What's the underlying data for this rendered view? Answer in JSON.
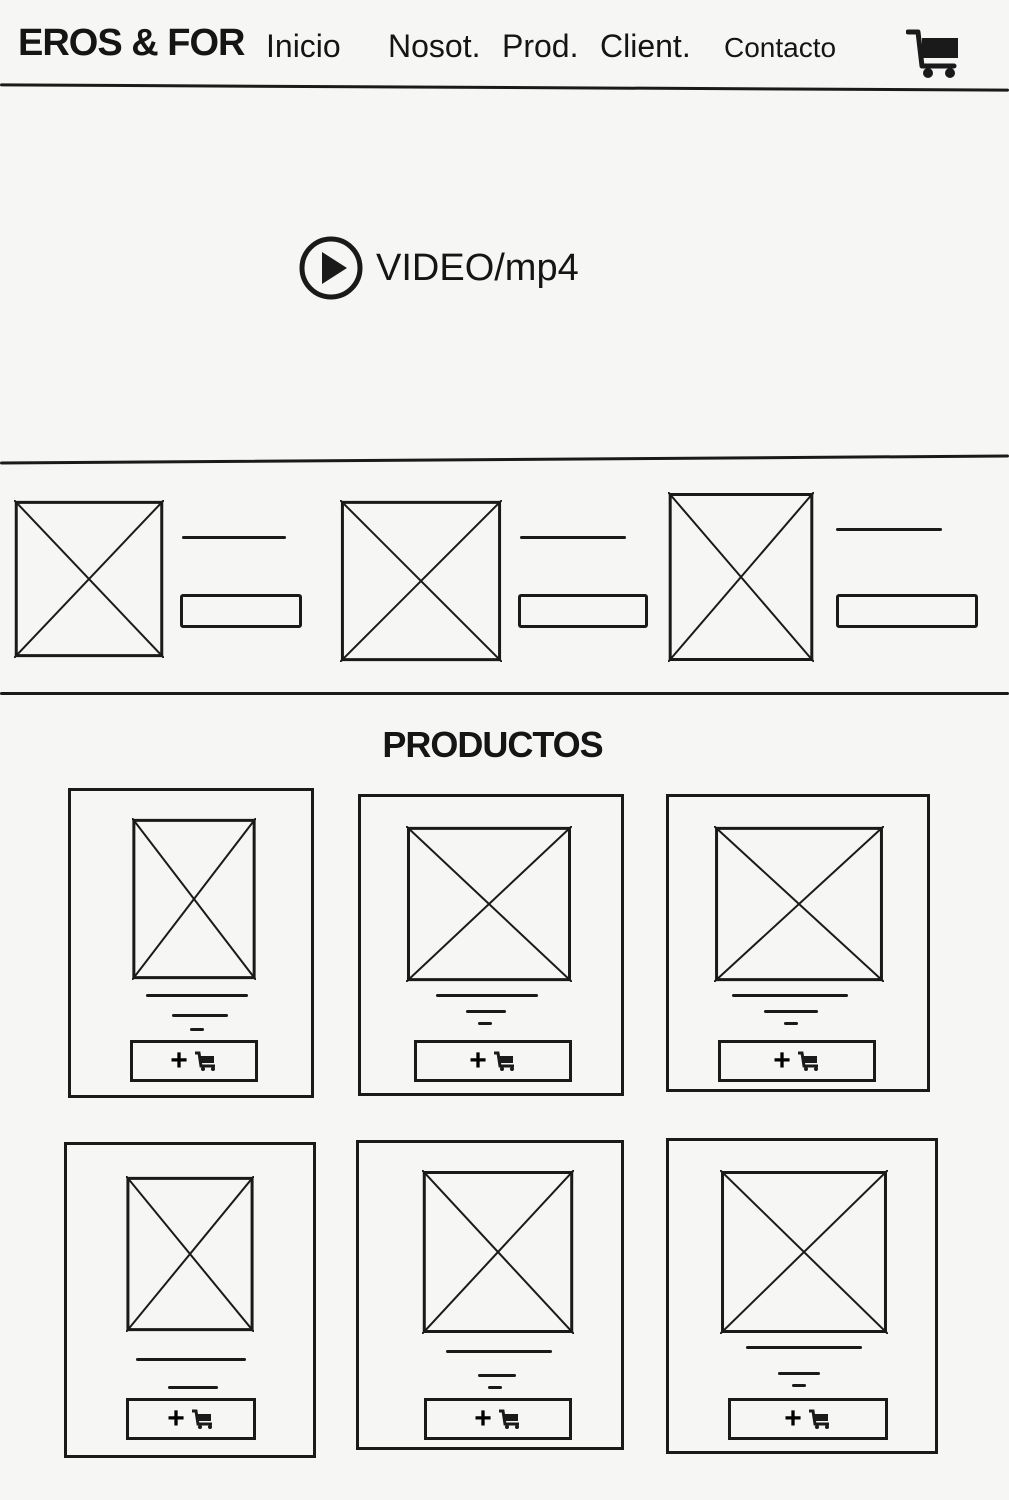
{
  "header": {
    "brand": "EROS & FOR",
    "nav": [
      {
        "label": "Inicio"
      },
      {
        "label": "Nosot."
      },
      {
        "label": "Prod."
      },
      {
        "label": "Client."
      },
      {
        "label": "Contacto"
      }
    ],
    "cart_icon": "shopping-cart-icon"
  },
  "hero": {
    "video_label": "VIDEO/mp4",
    "play_icon": "play-icon"
  },
  "features": [
    {
      "image": "image-placeholder"
    },
    {
      "image": "image-placeholder"
    },
    {
      "image": "image-placeholder"
    }
  ],
  "products": {
    "title": "PRODUCTOS",
    "items": [
      {
        "add_label": "+",
        "icon": "cart-icon"
      },
      {
        "add_label": "+",
        "icon": "cart-icon"
      },
      {
        "add_label": "+",
        "icon": "cart-icon"
      },
      {
        "add_label": "+",
        "icon": "cart-icon"
      },
      {
        "add_label": "+",
        "icon": "cart-icon"
      },
      {
        "add_label": "+",
        "icon": "cart-icon"
      }
    ]
  },
  "colors": {
    "ink": "#1a1a1a",
    "paper": "#f6f6f4"
  }
}
